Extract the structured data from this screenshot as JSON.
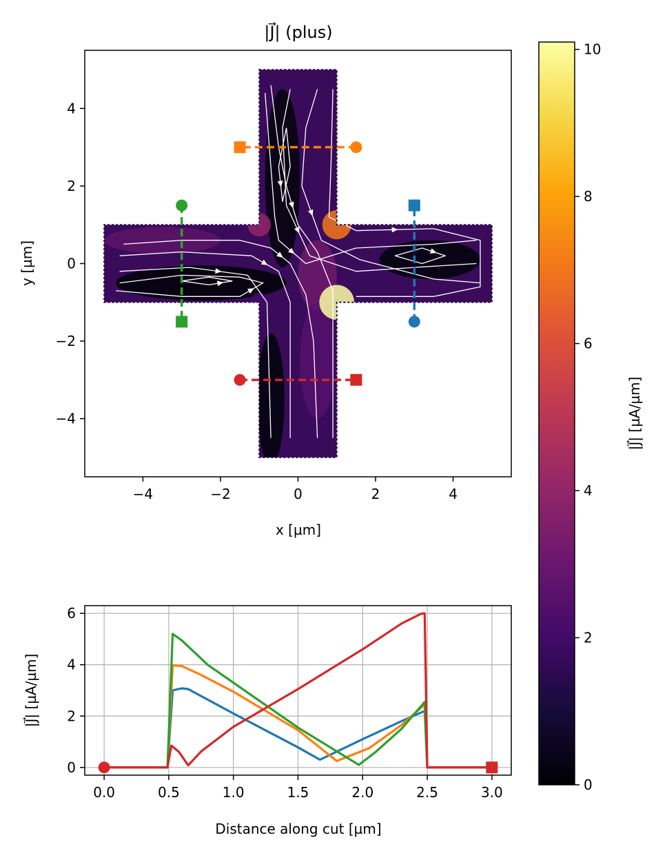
{
  "chart_data": [
    {
      "type": "heatmap",
      "title": "|J⃗| (plus)",
      "xlabel": "x [µm]",
      "ylabel": "y [µm]",
      "xlim": [
        -5.5,
        5.5
      ],
      "ylim": [
        -5.5,
        5.5
      ],
      "xticks": [
        -4,
        -2,
        0,
        2,
        4
      ],
      "yticks": [
        -4,
        -2,
        0,
        2,
        4
      ],
      "xtick_labels": [
        "−4",
        "−2",
        "0",
        "2",
        "4"
      ],
      "ytick_labels": [
        "−4",
        "−2",
        "0",
        "2",
        "4"
      ],
      "grid": false,
      "colormap": "inferno",
      "colorbar": {
        "label": "|J⃗| [µA/µm]",
        "range": [
          0,
          10.1
        ],
        "ticks": [
          0,
          2,
          4,
          6,
          8,
          10
        ],
        "tick_labels": [
          "0",
          "2",
          "4",
          "6",
          "8",
          "10"
        ]
      },
      "shape": {
        "horizontal_arm": {
          "x": [
            -5,
            5
          ],
          "y": [
            -1,
            1
          ]
        },
        "vertical_arm": {
          "x": [
            -1,
            1
          ],
          "y": [
            -5,
            5
          ]
        }
      },
      "hot_spots": [
        {
          "x": 1,
          "y": -1,
          "value": 10
        },
        {
          "x": 1,
          "y": 1,
          "value": 7
        },
        {
          "x": -1,
          "y": 1,
          "value": 4
        },
        {
          "x": -1,
          "y": -1,
          "value": 2
        }
      ],
      "cuts": [
        {
          "color": "#1f77b4",
          "start": [
            3,
            -1.5
          ],
          "end": [
            3,
            1.5
          ]
        },
        {
          "color": "#ff7f0e",
          "start": [
            1.5,
            3
          ],
          "end": [
            -1.5,
            3
          ]
        },
        {
          "color": "#2ca02c",
          "start": [
            -3,
            1.5
          ],
          "end": [
            -3,
            -1.5
          ]
        },
        {
          "color": "#d62728",
          "start": [
            -1.5,
            -3
          ],
          "end": [
            1.5,
            -3
          ]
        }
      ]
    },
    {
      "type": "line",
      "xlabel": "Distance along cut [µm]",
      "ylabel": "|J⃗| [µA/µm]",
      "xlim": [
        -0.15,
        3.15
      ],
      "ylim": [
        -0.3,
        6.3
      ],
      "xticks": [
        0,
        0.5,
        1,
        1.5,
        2,
        2.5,
        3
      ],
      "yticks": [
        0,
        2,
        4,
        6
      ],
      "xtick_labels": [
        "0.0",
        "0.5",
        "1.0",
        "1.5",
        "2.0",
        "2.5",
        "3.0"
      ],
      "ytick_labels": [
        "0",
        "2",
        "4",
        "6"
      ],
      "grid": true,
      "series": [
        {
          "color": "#1f77b4",
          "x": [
            0,
            0.49,
            0.53,
            0.6,
            0.65,
            1.0,
            1.5,
            1.67,
            2.0,
            2.3,
            2.48,
            2.5,
            3.0
          ],
          "y": [
            0,
            0,
            3.0,
            3.08,
            3.05,
            2.1,
            0.78,
            0.3,
            1.1,
            1.8,
            2.2,
            0,
            0
          ]
        },
        {
          "color": "#ff7f0e",
          "x": [
            0,
            0.49,
            0.53,
            0.6,
            0.75,
            1.0,
            1.5,
            1.8,
            2.05,
            2.3,
            2.48,
            2.5,
            3.0
          ],
          "y": [
            0,
            0,
            3.98,
            3.95,
            3.6,
            2.95,
            1.45,
            0.25,
            0.75,
            1.65,
            2.45,
            0,
            0
          ]
        },
        {
          "color": "#2ca02c",
          "x": [
            0,
            0.49,
            0.53,
            0.6,
            0.8,
            1.0,
            1.5,
            1.97,
            2.1,
            2.3,
            2.48,
            2.5,
            3.0
          ],
          "y": [
            0,
            0,
            5.2,
            4.95,
            4.0,
            3.3,
            1.55,
            0.1,
            0.6,
            1.5,
            2.55,
            0,
            0
          ]
        },
        {
          "color": "#d62728",
          "x": [
            0,
            0.49,
            0.52,
            0.58,
            0.65,
            0.75,
            1.0,
            1.5,
            2.0,
            2.3,
            2.45,
            2.48,
            2.5,
            3.0
          ],
          "y": [
            0,
            0,
            0.85,
            0.6,
            0.08,
            0.62,
            1.58,
            3.05,
            4.6,
            5.6,
            5.98,
            6.0,
            0,
            0
          ]
        }
      ]
    }
  ]
}
